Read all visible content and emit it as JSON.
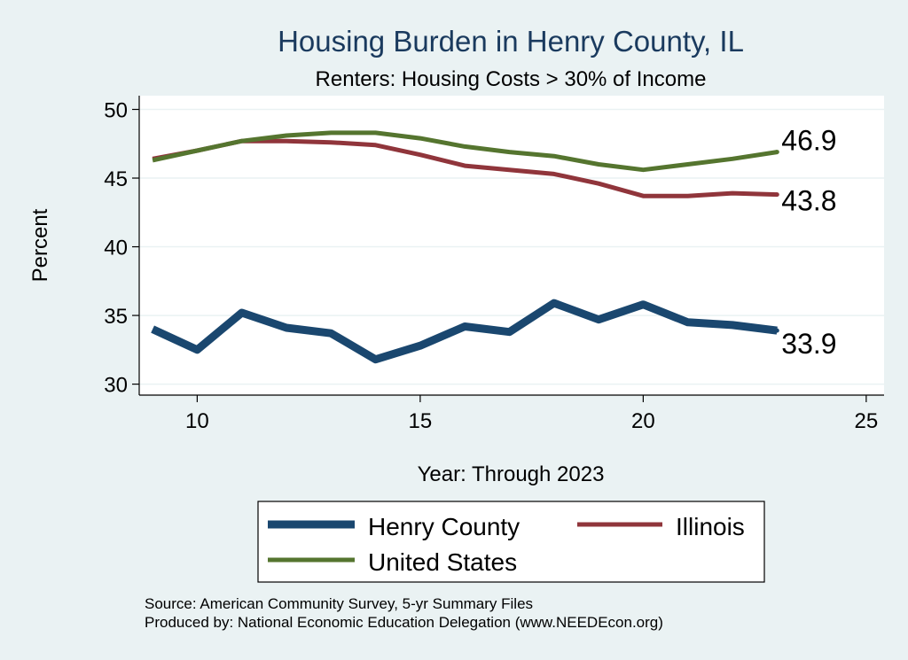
{
  "chart_data": {
    "type": "line",
    "title": "Housing Burden in Henry County, IL",
    "subtitle": "Renters: Housing Costs > 30% of Income",
    "xlabel": "Year: Through 2023",
    "ylabel": "Percent",
    "xlim": [
      8.7,
      25.4
    ],
    "ylim": [
      29.2,
      51.0
    ],
    "x_ticks": [
      10,
      15,
      20,
      25
    ],
    "y_ticks": [
      30,
      35,
      40,
      45,
      50
    ],
    "grid": "horizontal",
    "legend_position": "bottom",
    "x": [
      9,
      10,
      11,
      12,
      13,
      14,
      15,
      16,
      17,
      18,
      19,
      20,
      21,
      22,
      23
    ],
    "series": [
      {
        "name": "Henry County",
        "color": "#1a476f",
        "width": 9,
        "values": [
          34.0,
          32.5,
          35.2,
          34.1,
          33.7,
          31.8,
          32.8,
          34.2,
          33.8,
          35.9,
          34.7,
          35.8,
          34.5,
          34.3,
          33.9
        ],
        "end_label": "33.9"
      },
      {
        "name": "Illinois",
        "color": "#90353b",
        "width": 5,
        "values": [
          46.4,
          47.0,
          47.7,
          47.7,
          47.6,
          47.4,
          46.7,
          45.9,
          45.6,
          45.3,
          44.6,
          43.7,
          43.7,
          43.9,
          43.8
        ],
        "end_label": "43.8"
      },
      {
        "name": "United States",
        "color": "#55752f",
        "width": 5,
        "values": [
          46.3,
          47.0,
          47.7,
          48.1,
          48.3,
          48.3,
          47.9,
          47.3,
          46.9,
          46.6,
          46.0,
          45.6,
          46.0,
          46.4,
          46.9
        ],
        "end_label": "46.9"
      }
    ],
    "source_lines": [
      "Source: American Community Survey, 5-yr Summary Files",
      "Produced by: National Economic Education Delegation (www.NEEDEcon.org)"
    ]
  }
}
